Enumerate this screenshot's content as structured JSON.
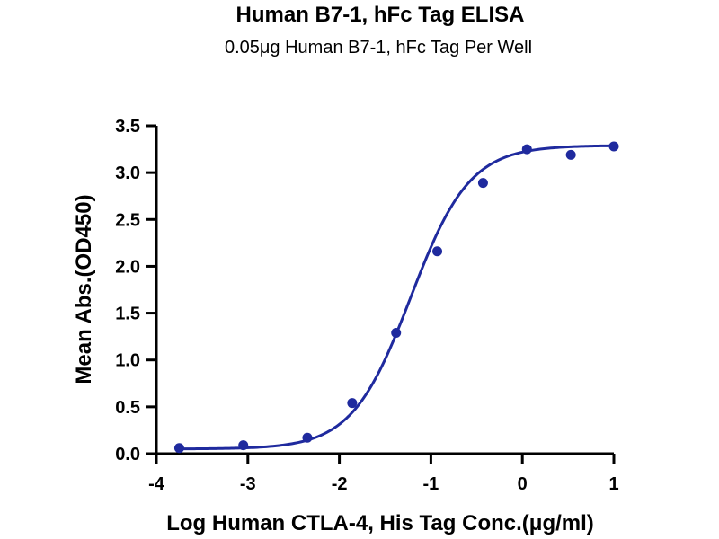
{
  "chart_data": {
    "type": "scatter",
    "title": "Human B7-1, hFc Tag ELISA",
    "subtitle": "0.05μg Human B7-1, hFc Tag Per Well",
    "xlabel": "Log Human CTLA-4, His Tag Conc.(μg/ml)",
    "ylabel": "Mean Abs.(OD450)",
    "xlim": [
      -4,
      1
    ],
    "ylim": [
      0,
      3.5
    ],
    "x_ticks": [
      -4,
      -3,
      -2,
      -1,
      0,
      1
    ],
    "x_tick_labels": [
      "-4",
      "-3",
      "-2",
      "-1",
      "0",
      "1"
    ],
    "y_ticks": [
      0,
      0.5,
      1,
      1.5,
      2,
      2.5,
      3,
      3.5
    ],
    "y_tick_labels": [
      "0.0",
      "0.5",
      "1.0",
      "1.5",
      "2.0",
      "2.5",
      "3.0",
      "3.5"
    ],
    "grid": false,
    "color": "#1f2a9e",
    "series": [
      {
        "x": [
          -3.75,
          -3.05,
          -2.35,
          -1.86,
          -1.38,
          -0.93,
          -0.43,
          0.05,
          0.53,
          1.0
        ],
        "y": [
          0.06,
          0.09,
          0.17,
          0.54,
          1.29,
          2.16,
          2.89,
          3.25,
          3.19,
          3.28
        ]
      }
    ],
    "fit": {
      "type": "4PL",
      "bottom": 0.05,
      "top": 3.29,
      "log_ec50": -1.22,
      "hill_slope": 1.35
    }
  }
}
